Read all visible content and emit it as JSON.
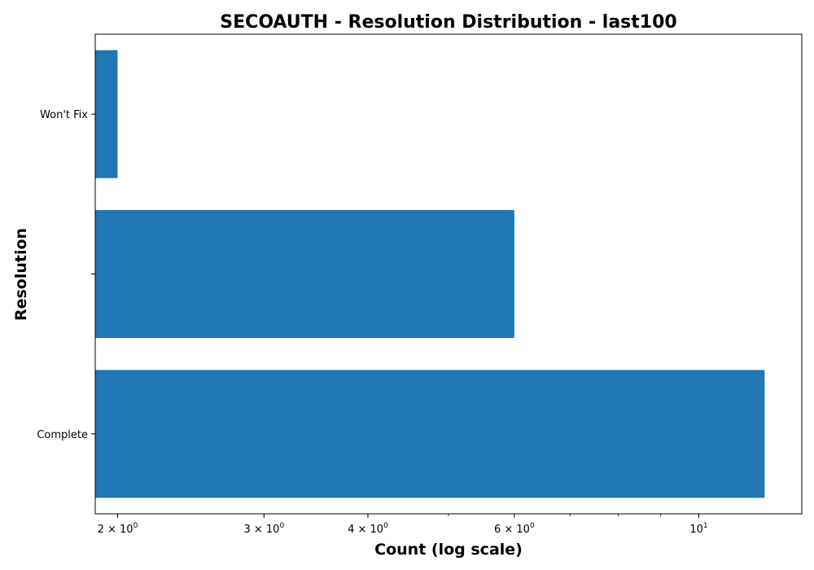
{
  "chart_data": {
    "type": "bar",
    "orientation": "horizontal",
    "title": "SECOAUTH - Resolution Distribution - last100",
    "xlabel": "Count (log scale)",
    "ylabel": "Resolution",
    "x_scale": "log",
    "xlim": [
      1.88,
      13.3
    ],
    "categories": [
      "Complete",
      "",
      "Won't Fix"
    ],
    "values": [
      12,
      6,
      2
    ],
    "bar_color": "#1f77b4",
    "grid": false,
    "legend": "none",
    "x_major_ticks": [
      {
        "value": 2,
        "base": "2 × 10",
        "exp": "0"
      },
      {
        "value": 3,
        "base": "3 × 10",
        "exp": "0"
      },
      {
        "value": 4,
        "base": "4 × 10",
        "exp": "0"
      },
      {
        "value": 6,
        "base": "6 × 10",
        "exp": "0"
      },
      {
        "value": 10,
        "base": "10",
        "exp": "1"
      }
    ],
    "x_minor_ticks": [
      5,
      7,
      8,
      9
    ]
  }
}
